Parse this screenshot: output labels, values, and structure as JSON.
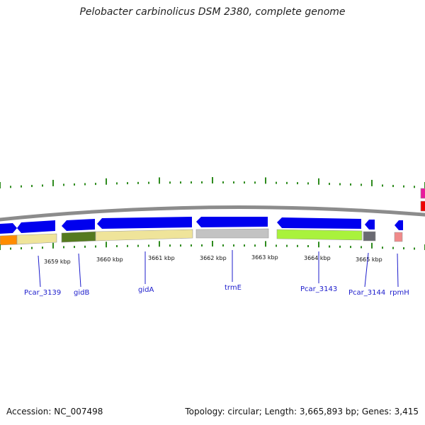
{
  "title": "Pelobacter carbinolicus DSM 2380, complete genome",
  "footer": {
    "accession": "Accession: NC_007498",
    "summary": "Topology: circular; Length: 3,665,893 bp; Genes: 3,415"
  },
  "kbp_ticks": [
    "3659 kbp",
    "3660 kbp",
    "3661 kbp",
    "3662 kbp",
    "3663 kbp",
    "3664 kbp",
    "3665 kbp"
  ],
  "genes": [
    {
      "name": "Pcar_3139"
    },
    {
      "name": "gidB"
    },
    {
      "name": "gidA"
    },
    {
      "name": "trmE"
    },
    {
      "name": "Pcar_3143"
    },
    {
      "name": "Pcar_3144"
    },
    {
      "name": "rpmH"
    }
  ],
  "colors": {
    "gene_arrow": "#0000ee",
    "backbone": "#8c8c8c",
    "tick": "#2e8b1e",
    "label": "#1c1ccc",
    "khaki": "#efe49a",
    "olive": "#557a1f",
    "gray_block": "#c3c3c3",
    "lime": "#a9f23c",
    "dark_gray": "#6a6a72",
    "pink": "#f08a8a",
    "orange": "#ff8c00",
    "magenta": "#e81a9c",
    "red": "#ee0000"
  }
}
